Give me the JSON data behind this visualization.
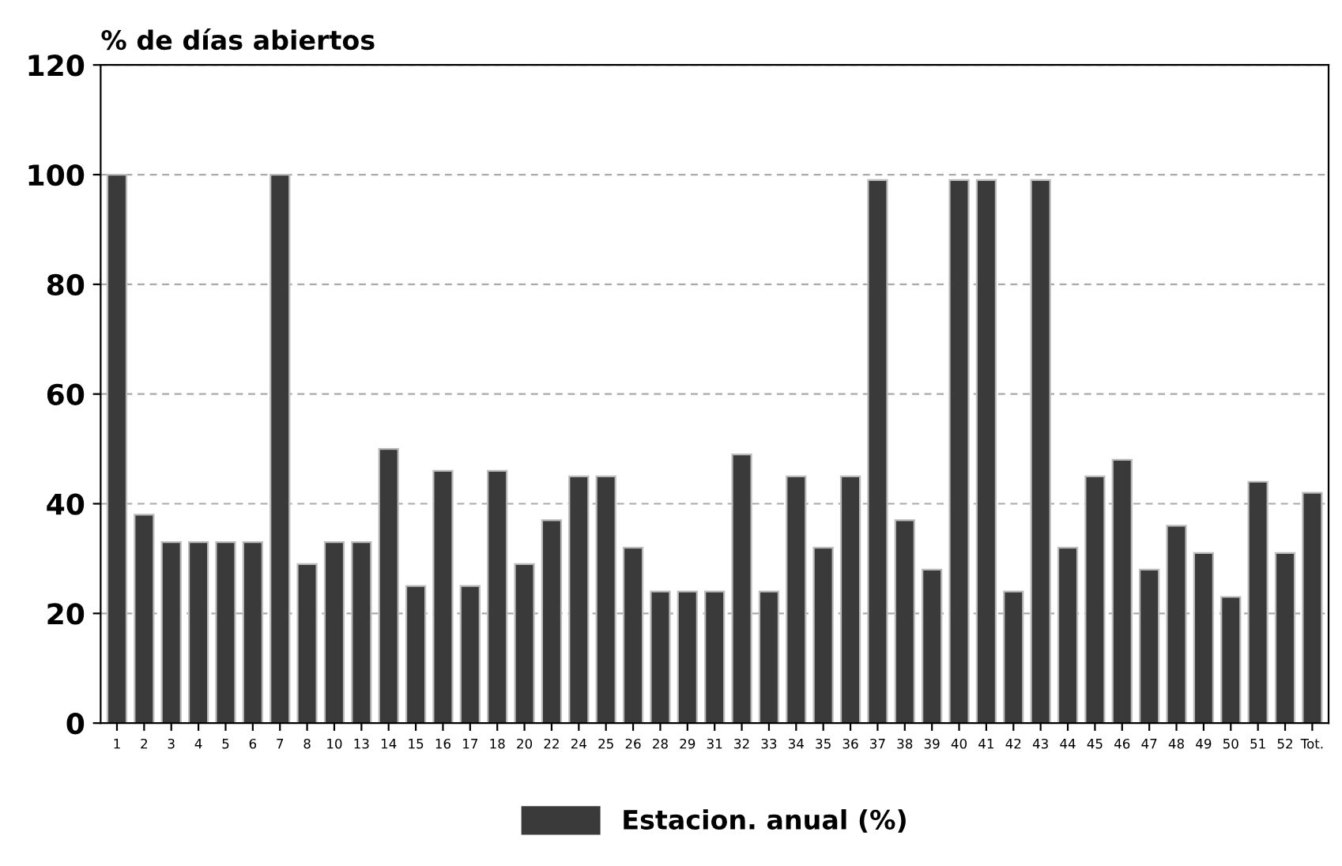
{
  "chart_data": {
    "type": "bar",
    "ylabel": "% de días abiertos",
    "categories": [
      "1",
      "2",
      "3",
      "4",
      "5",
      "6",
      "7",
      "8",
      "10",
      "13",
      "14",
      "15",
      "16",
      "17",
      "18",
      "20",
      "22",
      "24",
      "25",
      "26",
      "28",
      "29",
      "31",
      "32",
      "33",
      "34",
      "35",
      "36",
      "37",
      "38",
      "39",
      "40",
      "41",
      "42",
      "43",
      "44",
      "45",
      "46",
      "47",
      "48",
      "49",
      "50",
      "51",
      "52",
      "Tot."
    ],
    "series": [
      {
        "name": "Estacion. anual (%)",
        "color": "#3a3a3a",
        "values": [
          100,
          38,
          33,
          33,
          33,
          33,
          100,
          29,
          33,
          33,
          50,
          25,
          46,
          25,
          46,
          29,
          37,
          45,
          45,
          32,
          24,
          24,
          24,
          49,
          24,
          45,
          32,
          45,
          99,
          37,
          28,
          99,
          99,
          24,
          99,
          32,
          45,
          48,
          28,
          36,
          31,
          23,
          44,
          31,
          42
        ]
      }
    ],
    "ylim": [
      0,
      120
    ],
    "yticks": [
      0,
      20,
      40,
      60,
      80,
      100,
      120
    ],
    "grid": "y",
    "legend": "bottom"
  }
}
